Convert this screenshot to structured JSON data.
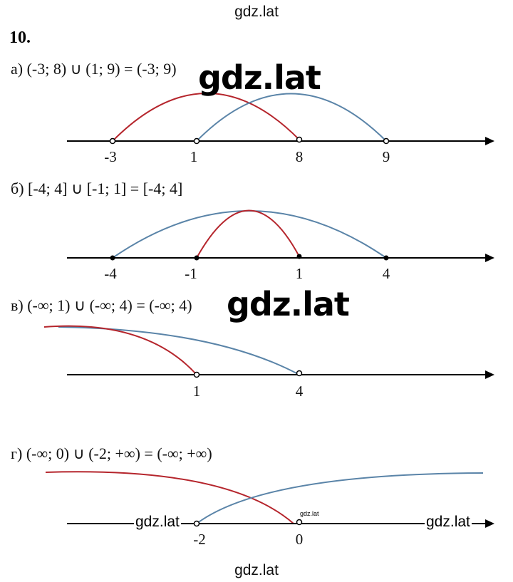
{
  "watermark": "gdz.lat",
  "watermark_small": "gdz.lat",
  "problem_number": "10.",
  "colors": {
    "red": "#b5252c",
    "blue": "#5a84a8",
    "axis": "#000000"
  },
  "panels": [
    {
      "label": "а) (-3; 8) ∪ (1; 9) = (-3; 9)",
      "points": [
        {
          "text": "-3",
          "filled": false
        },
        {
          "text": "1",
          "filled": false
        },
        {
          "text": "8",
          "filled": false
        },
        {
          "text": "9",
          "filled": false
        }
      ]
    },
    {
      "label": "б) [-4; 4] ∪ [-1; 1] = [-4; 4]",
      "points": [
        {
          "text": "-4",
          "filled": true
        },
        {
          "text": "-1",
          "filled": true
        },
        {
          "text": "1",
          "filled": true
        },
        {
          "text": "4",
          "filled": true
        }
      ]
    },
    {
      "label": "в) (-∞; 1) ∪ (-∞; 4) = (-∞; 4)",
      "points": [
        {
          "text": "1",
          "filled": false
        },
        {
          "text": "4",
          "filled": false
        }
      ]
    },
    {
      "label": "г) (-∞; 0) ∪ (-2; +∞) = (-∞; +∞)",
      "points": [
        {
          "text": "-2",
          "filled": false
        },
        {
          "text": "0",
          "filled": false
        }
      ]
    }
  ]
}
